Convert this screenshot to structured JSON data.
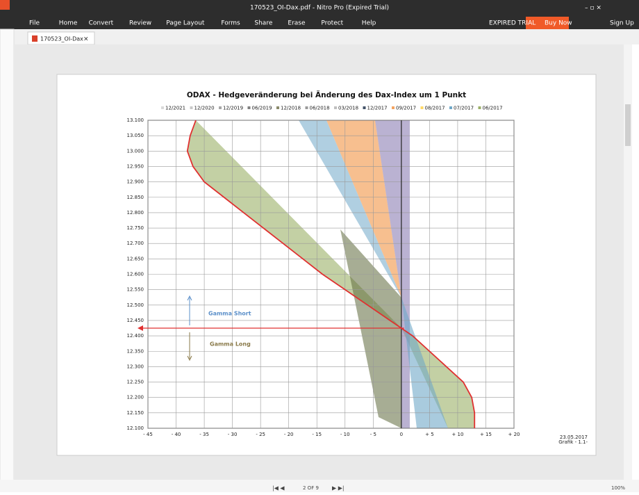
{
  "window": {
    "title": "170523_OI-Dax.pdf - Nitro Pro (Expired Trial)",
    "menu": [
      "File",
      "Home",
      "Convert",
      "Review",
      "Page Layout",
      "Forms",
      "Share",
      "Erase",
      "Protect",
      "Help"
    ],
    "expired": "EXPIRED TRIAL",
    "buy": "Buy Now",
    "signup": "Sign Up",
    "tab": "170523_OI-Dax",
    "page_indicator": "2 OF 9",
    "zoom": "100%"
  },
  "pdf_chart": {
    "type": "area",
    "title": "ODAX - Hedgeveränderung bei Änderung des Dax-Index um 1 Punkt",
    "legend": [
      {
        "name": "12/2021",
        "color": "#d9d9d9"
      },
      {
        "name": "12/2020",
        "color": "#c8c8c8"
      },
      {
        "name": "12/2019",
        "color": "#a6a6a6"
      },
      {
        "name": "06/2019",
        "color": "#7f7f7f"
      },
      {
        "name": "12/2018",
        "color": "#8a8a6a"
      },
      {
        "name": "06/2018",
        "color": "#9a9a9a"
      },
      {
        "name": "03/2018",
        "color": "#bfbfbf"
      },
      {
        "name": "12/2017",
        "color": "#44546a"
      },
      {
        "name": "09/2017",
        "color": "#f4a460"
      },
      {
        "name": "08/2017",
        "color": "#ffd966"
      },
      {
        "name": "07/2017",
        "color": "#6fa8c8"
      },
      {
        "name": "06/2017",
        "color": "#9bb068"
      }
    ],
    "xlim": [
      -45,
      20
    ],
    "xticks": [
      {
        "value": -45,
        "label": "- 45"
      },
      {
        "value": -40,
        "label": "- 40"
      },
      {
        "value": -35,
        "label": "- 35"
      },
      {
        "value": -30,
        "label": "- 30"
      },
      {
        "value": -25,
        "label": "- 25"
      },
      {
        "value": -20,
        "label": "- 20"
      },
      {
        "value": -15,
        "label": "- 15"
      },
      {
        "value": -10,
        "label": "- 10"
      },
      {
        "value": -5,
        "label": "- 5"
      },
      0,
      {
        "value": 5,
        "label": "+ 5"
      },
      {
        "value": 10,
        "label": "+ 10"
      },
      {
        "value": 15,
        "label": "+ 15"
      },
      {
        "value": 20,
        "label": "+ 20"
      }
    ],
    "ylim": [
      12100,
      13100
    ],
    "yticks": [
      {
        "value": 12100,
        "label": "12.100"
      },
      {
        "value": 12150,
        "label": "12.150"
      },
      {
        "value": 12200,
        "label": "12.200"
      },
      {
        "value": 12250,
        "label": "12.250"
      },
      {
        "value": 12300,
        "label": "12.300"
      },
      {
        "value": 12350,
        "label": "12.350"
      },
      {
        "value": 12400,
        "label": "12.400"
      },
      {
        "value": 12450,
        "label": "12.450"
      },
      {
        "value": 12500,
        "label": "12.500"
      },
      {
        "value": 12550,
        "label": "12.550"
      },
      {
        "value": 12600,
        "label": "12.600"
      },
      {
        "value": 12650,
        "label": "12.650"
      },
      {
        "value": 12700,
        "label": "12.700"
      },
      {
        "value": 12750,
        "label": "12.750"
      },
      {
        "value": 12800,
        "label": "12.800"
      },
      {
        "value": 12850,
        "label": "12.850"
      },
      {
        "value": 12900,
        "label": "12.900"
      },
      {
        "value": 12950,
        "label": "12.950"
      },
      {
        "value": 13000,
        "label": "13.000"
      },
      {
        "value": 13050,
        "label": "13.050"
      },
      {
        "value": 13100,
        "label": "13.100"
      }
    ],
    "annotations": [
      "Gamma Short",
      "Gamma Long"
    ],
    "date": "23.05.2017",
    "footer": "Grafik - 1.1-",
    "curve": {
      "color": "#e03030",
      "x": [
        -36.5,
        -37.5,
        -38,
        -37,
        -35,
        -31.5,
        -28,
        -24.5,
        -21,
        -17.5,
        -14,
        -10,
        -6,
        -2,
        0,
        2,
        5,
        8,
        11,
        12.5,
        13,
        13
      ],
      "y": [
        13100,
        13050,
        13000,
        12950,
        12900,
        12850,
        12800,
        12750,
        12700,
        12650,
        12600,
        12550,
        12500,
        12450,
        12425,
        12400,
        12350,
        12300,
        12250,
        12200,
        12150,
        12100
      ]
    },
    "marker_level": 12425
  }
}
